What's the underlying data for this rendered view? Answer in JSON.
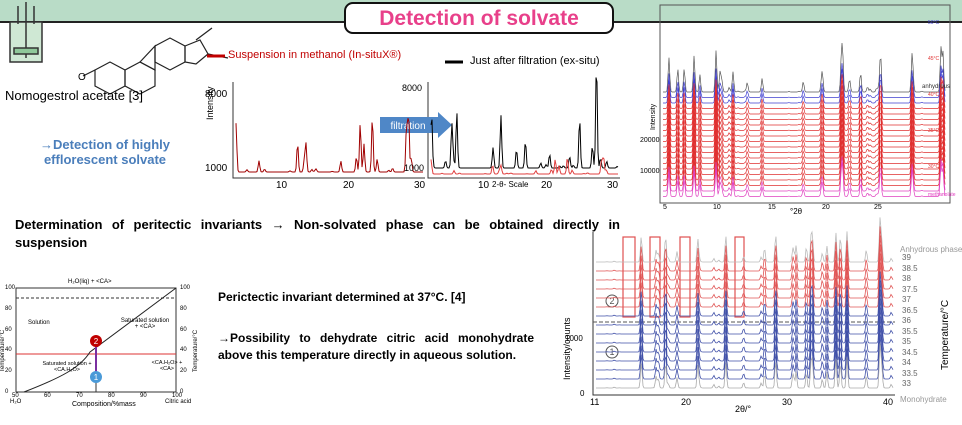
{
  "header": {
    "title": "Detection of solvate"
  },
  "top_left": {
    "compound": "Nomogestrol acetate [3]",
    "finding": "→Detection of highly efflorescent solvate"
  },
  "insitu_chart": {
    "legend": [
      "Suspension in methanol (In-situX®)",
      "Just after filtration (ex-situ)"
    ],
    "y_label": "Intensity",
    "left_yticks": [
      "8000",
      "1000"
    ],
    "right_yticks": [
      "8000",
      "1000"
    ],
    "left_xticks": [
      "10",
      "20",
      "30"
    ],
    "right_xticks": [
      "10",
      "20",
      "30"
    ],
    "x_label": "2-θ- Scale",
    "arrow_label": "filtration"
  },
  "temperature_chart": {
    "series_labels": [
      "anhydrous",
      "50°C",
      "45°C",
      "40°C",
      "35°C",
      "30°C",
      "methanolate"
    ],
    "y_label": "Intensity",
    "yticks": [
      "20000",
      "10000"
    ],
    "xticks": [
      "5",
      "10",
      "15",
      "20",
      "25"
    ],
    "x_label": "°2θ"
  },
  "statement": "Determination of peritectic invariants → Non-solvated phase can be obtained directly in suspension",
  "phase_diagram": {
    "regions": [
      "H₂O(liq) + <CA>",
      "Solution",
      "Saturated solution + <CA>",
      "Saturated solution + <CA.H₂O>",
      "<CA.H₂O> + <CA>"
    ],
    "y_label": "Temperature/°C",
    "y2_label": "Temperature/°C",
    "yticks": [
      "100",
      "80",
      "60",
      "40",
      "20",
      "0"
    ],
    "xticks": [
      "50",
      "60",
      "70",
      "80",
      "90",
      "100"
    ],
    "x_ends": [
      "H₂O",
      "Citric acid"
    ],
    "x_label": "Composition/%mass",
    "points": [
      "2",
      "1"
    ]
  },
  "conclusion": {
    "peritectic": "Perictectic invariant determined at 37°C. [4]",
    "possibility": "→Possibility to dehydrate citric acid monohydrate above this temperature directly in aqueous solution."
  },
  "citric_chart": {
    "top_label": "Anhydrous phase",
    "temperatures": [
      "39",
      "38.5",
      "38",
      "37.5",
      "37",
      "36.5",
      "36",
      "35.5",
      "35",
      "34.5",
      "34",
      "33.5",
      "33"
    ],
    "bottom_label": "Monohydrate",
    "y_label": "Intensity/counts",
    "y2_label": "Temperature/°C",
    "yticks": [
      "1000",
      "0"
    ],
    "xticks": [
      "11",
      "20",
      "30",
      "40"
    ],
    "x_label": "2θ/°",
    "markers": [
      "2",
      "1"
    ]
  }
}
